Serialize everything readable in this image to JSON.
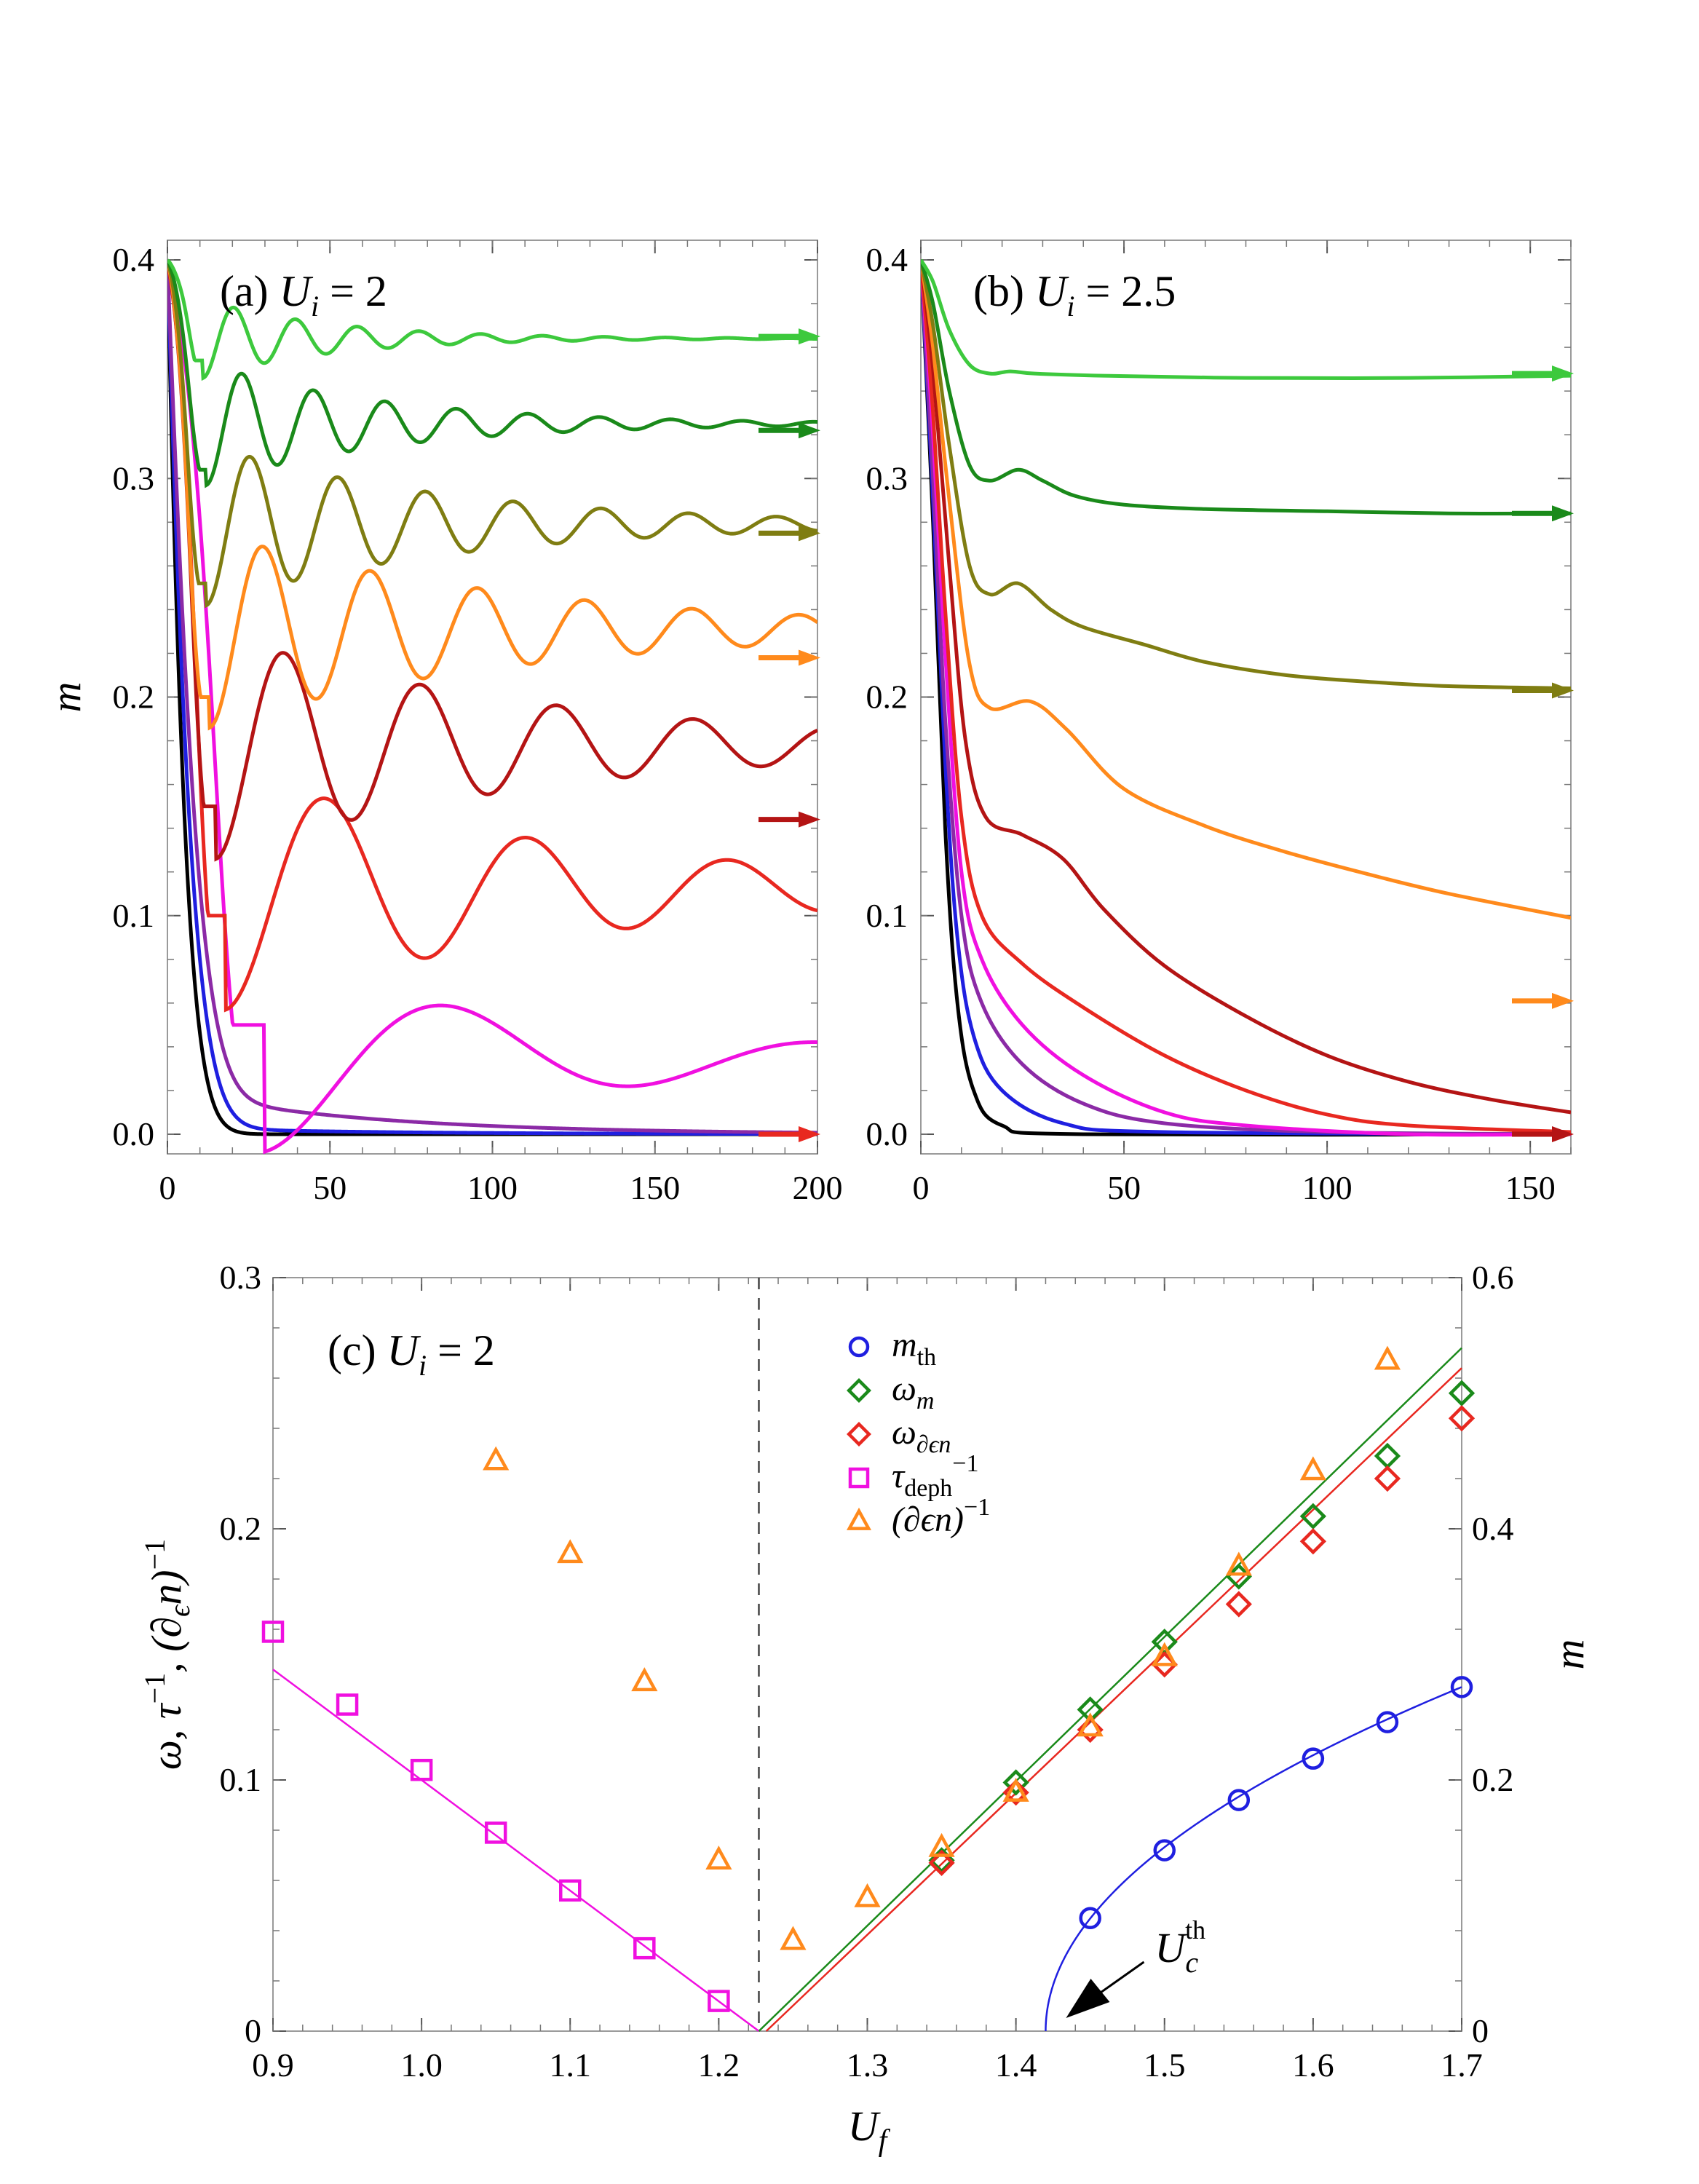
{
  "chart_data": [
    {
      "id": "a",
      "type": "line",
      "title": "(a) U_i = 2",
      "title_parts": {
        "label": "(a)",
        "var": "U",
        "sub": "i",
        "eq": "= 2"
      },
      "xlabel": "",
      "ylabel": "m",
      "xlim": [
        0,
        200
      ],
      "ylim": [
        0,
        0.4
      ],
      "xticks": [
        "0",
        "50",
        "100",
        "150",
        "200"
      ],
      "yticks": [
        "0.0",
        "0.1",
        "0.2",
        "0.3",
        "0.4"
      ],
      "series": [
        {
          "color": "#000000",
          "tail": 0.0,
          "dip_t": 0,
          "dip": 0,
          "A": 0,
          "period": 1,
          "decay": 1,
          "arrow": null
        },
        {
          "color": "#1f1fe0",
          "tail": 0.0,
          "dip_t": 0,
          "dip": 0,
          "A": 0,
          "period": 1,
          "decay": 1,
          "arrow": null,
          "slow": 0.003
        },
        {
          "color": "#8b2aa6",
          "tail": 0.0,
          "dip_t": 0,
          "dip": 0,
          "A": 0,
          "period": 1,
          "decay": 1,
          "arrow": null,
          "slow": 0.02
        },
        {
          "color": "#f010e0",
          "tail": 0.035,
          "dip_t": 30,
          "dip": 0.05,
          "A": 0.043,
          "period": 115,
          "decay": 95,
          "arrow": null
        },
        {
          "color": "#e82820",
          "tail": 0.112,
          "dip_t": 18,
          "dip": 0.1,
          "A": 0.055,
          "period": 62,
          "decay": 110,
          "arrow": 0.0
        },
        {
          "color": "#b41414",
          "tail": 0.178,
          "dip_t": 15,
          "dip": 0.15,
          "A": 0.052,
          "period": 42,
          "decay": 100,
          "arrow": 0.144
        },
        {
          "color": "#ff8a1c",
          "tail": 0.231,
          "dip_t": 13,
          "dip": 0.2,
          "A": 0.045,
          "period": 33,
          "decay": 95,
          "arrow": 0.218
        },
        {
          "color": "#7f7d12",
          "tail": 0.279,
          "dip_t": 12,
          "dip": 0.252,
          "A": 0.037,
          "period": 27,
          "decay": 75,
          "arrow": 0.275
        },
        {
          "color": "#1a8a1a",
          "tail": 0.325,
          "dip_t": 12,
          "dip": 0.304,
          "A": 0.028,
          "period": 22,
          "decay": 55,
          "arrow": 0.322
        },
        {
          "color": "#3dc93d",
          "tail": 0.364,
          "dip_t": 11,
          "dip": 0.354,
          "A": 0.018,
          "period": 19,
          "decay": 40,
          "arrow": 0.365
        }
      ]
    },
    {
      "id": "b",
      "type": "line",
      "title": "(b) U_i = 2.5",
      "title_parts": {
        "label": "(b)",
        "var": "U",
        "sub": "i",
        "eq": "= 2.5"
      },
      "xlabel": "",
      "ylabel": "",
      "xlim": [
        0,
        160
      ],
      "ylim": [
        0,
        0.4
      ],
      "xticks": [
        "0",
        "50",
        "100",
        "150"
      ],
      "yticks": [
        "0.0",
        "0.1",
        "0.2",
        "0.3",
        "0.4"
      ],
      "series": [
        {
          "color": "#000000",
          "pts": [
            [
              0,
              0.4
            ],
            [
              3,
              0.28
            ],
            [
              6,
              0.14
            ],
            [
              9,
              0.06
            ],
            [
              13,
              0.02
            ],
            [
              20,
              0.004
            ],
            [
              40,
              0.0
            ],
            [
              160,
              0.0
            ]
          ],
          "arrow": null
        },
        {
          "color": "#1f1fe0",
          "pts": [
            [
              0,
              0.4
            ],
            [
              3,
              0.29
            ],
            [
              6,
              0.17
            ],
            [
              9,
              0.09
            ],
            [
              13,
              0.045
            ],
            [
              20,
              0.02
            ],
            [
              35,
              0.005
            ],
            [
              60,
              0.001
            ],
            [
              160,
              0.0
            ]
          ],
          "arrow": null
        },
        {
          "color": "#8b2aa6",
          "pts": [
            [
              0,
              0.4
            ],
            [
              3,
              0.3
            ],
            [
              6,
              0.19
            ],
            [
              10,
              0.1
            ],
            [
              15,
              0.06
            ],
            [
              25,
              0.032
            ],
            [
              40,
              0.014
            ],
            [
              60,
              0.005
            ],
            [
              100,
              0.001
            ],
            [
              160,
              0.0
            ]
          ],
          "arrow": null
        },
        {
          "color": "#f010e0",
          "pts": [
            [
              0,
              0.4
            ],
            [
              3,
              0.32
            ],
            [
              6,
              0.22
            ],
            [
              10,
              0.12
            ],
            [
              15,
              0.08
            ],
            [
              25,
              0.05
            ],
            [
              40,
              0.027
            ],
            [
              60,
              0.01
            ],
            [
              80,
              0.004
            ],
            [
              120,
              0.0
            ],
            [
              160,
              0.0
            ]
          ],
          "arrow": null
        },
        {
          "color": "#e82820",
          "pts": [
            [
              0,
              0.4
            ],
            [
              3,
              0.33
            ],
            [
              6,
              0.24
            ],
            [
              10,
              0.145
            ],
            [
              15,
              0.1
            ],
            [
              25,
              0.078
            ],
            [
              40,
              0.058
            ],
            [
              60,
              0.036
            ],
            [
              80,
              0.02
            ],
            [
              100,
              0.009
            ],
            [
              120,
              0.004
            ],
            [
              160,
              0.001
            ]
          ],
          "arrow": null
        },
        {
          "color": "#b41414",
          "pts": [
            [
              0,
              0.4
            ],
            [
              3,
              0.35
            ],
            [
              7,
              0.26
            ],
            [
              11,
              0.18
            ],
            [
              16,
              0.145
            ],
            [
              25,
              0.137
            ],
            [
              35,
              0.126
            ],
            [
              45,
              0.103
            ],
            [
              60,
              0.077
            ],
            [
              80,
              0.054
            ],
            [
              100,
              0.036
            ],
            [
              120,
              0.024
            ],
            [
              140,
              0.016
            ],
            [
              160,
              0.01
            ]
          ],
          "arrow": 0.0
        },
        {
          "color": "#ff8a1c",
          "pts": [
            [
              0,
              0.4
            ],
            [
              3,
              0.36
            ],
            [
              7,
              0.29
            ],
            [
              12,
              0.215
            ],
            [
              17,
              0.195
            ],
            [
              27,
              0.198
            ],
            [
              36,
              0.185
            ],
            [
              50,
              0.158
            ],
            [
              70,
              0.141
            ],
            [
              90,
              0.129
            ],
            [
              110,
              0.119
            ],
            [
              130,
              0.11
            ],
            [
              160,
              0.099
            ]
          ],
          "arrow": 0.061
        },
        {
          "color": "#7f7d12",
          "pts": [
            [
              0,
              0.4
            ],
            [
              3,
              0.37
            ],
            [
              7,
              0.315
            ],
            [
              12,
              0.26
            ],
            [
              17,
              0.247
            ],
            [
              24,
              0.252
            ],
            [
              32,
              0.24
            ],
            [
              40,
              0.232
            ],
            [
              55,
              0.224
            ],
            [
              70,
              0.216
            ],
            [
              90,
              0.21
            ],
            [
              110,
              0.207
            ],
            [
              130,
              0.205
            ],
            [
              160,
              0.204
            ]
          ],
          "arrow": 0.203
        },
        {
          "color": "#1a8a1a",
          "pts": [
            [
              0,
              0.4
            ],
            [
              3,
              0.38
            ],
            [
              7,
              0.34
            ],
            [
              12,
              0.306
            ],
            [
              17,
              0.299
            ],
            [
              24,
              0.304
            ],
            [
              30,
              0.299
            ],
            [
              38,
              0.292
            ],
            [
              50,
              0.288
            ],
            [
              70,
              0.286
            ],
            [
              100,
              0.285
            ],
            [
              130,
              0.284
            ],
            [
              160,
              0.284
            ]
          ],
          "arrow": 0.284
        },
        {
          "color": "#3dc93d",
          "pts": [
            [
              0,
              0.4
            ],
            [
              3,
              0.39
            ],
            [
              7,
              0.368
            ],
            [
              12,
              0.352
            ],
            [
              17,
              0.348
            ],
            [
              22,
              0.349
            ],
            [
              28,
              0.348
            ],
            [
              45,
              0.347
            ],
            [
              80,
              0.346
            ],
            [
              120,
              0.346
            ],
            [
              160,
              0.347
            ]
          ],
          "arrow": 0.348
        }
      ]
    },
    {
      "id": "c",
      "type": "scatter",
      "title": "(c) U_i = 2",
      "title_parts": {
        "label": "(c)",
        "var": "U",
        "sub": "i",
        "eq": "= 2"
      },
      "xlabel": "U_f",
      "ylabel_left": "ω, τ^-1, (∂_ϵ n)^-1",
      "ylabel_right": "m",
      "xlim": [
        0.9,
        1.7
      ],
      "ylim_left": [
        0,
        0.3
      ],
      "ylim_right": [
        0,
        0.6
      ],
      "xticks": [
        "0.9",
        "1.0",
        "1.1",
        "1.2",
        "1.3",
        "1.4",
        "1.5",
        "1.6",
        "1.7"
      ],
      "yticks_left": [
        "0",
        "0.1",
        "0.2",
        "0.3"
      ],
      "yticks_right": [
        "0",
        "0.2",
        "0.4",
        "0.6"
      ],
      "dashed_line_x": 1.227,
      "annotation": {
        "text": "U_c^th",
        "x": 1.42,
        "y": 0
      },
      "legend": [
        {
          "marker": "circle",
          "color": "#1f1fe0",
          "label": "m",
          "sub": "th",
          "sup": ""
        },
        {
          "marker": "diamond",
          "color": "#1a8a1a",
          "label": "ω",
          "sub": "m",
          "sup": ""
        },
        {
          "marker": "diamond",
          "color": "#e82820",
          "label": "ω",
          "sub": "∂ϵn",
          "sup": ""
        },
        {
          "marker": "square",
          "color": "#f010e0",
          "label": "τ",
          "sub": "deph",
          "sup": "−1"
        },
        {
          "marker": "triangle",
          "color": "#ff8a1c",
          "label": "(∂ϵn)",
          "sub": "",
          "sup": "−1"
        }
      ],
      "series": [
        {
          "name": "m_th",
          "axis": "right",
          "marker": "circle",
          "color": "#1f1fe0",
          "x": [
            1.45,
            1.5,
            1.55,
            1.6,
            1.65,
            1.7
          ],
          "y": [
            0.09,
            0.144,
            0.184,
            0.217,
            0.246,
            0.274
          ]
        },
        {
          "name": "ω_m",
          "axis": "left",
          "marker": "diamond",
          "color": "#1a8a1a",
          "x": [
            1.35,
            1.4,
            1.45,
            1.5,
            1.55,
            1.6,
            1.65,
            1.7
          ],
          "y": [
            0.068,
            0.099,
            0.128,
            0.155,
            0.181,
            0.205,
            0.229,
            0.254
          ]
        },
        {
          "name": "ω_∂ϵn",
          "axis": "left",
          "marker": "diamond",
          "color": "#e82820",
          "x": [
            1.35,
            1.4,
            1.45,
            1.5,
            1.55,
            1.6,
            1.65,
            1.7
          ],
          "y": [
            0.067,
            0.095,
            0.12,
            0.146,
            0.17,
            0.195,
            0.22,
            0.244
          ]
        },
        {
          "name": "τ_deph^-1",
          "axis": "left",
          "marker": "square",
          "color": "#f010e0",
          "x": [
            0.9,
            0.95,
            1.0,
            1.05,
            1.1,
            1.15,
            1.2
          ],
          "y": [
            0.159,
            0.13,
            0.104,
            0.079,
            0.056,
            0.033,
            0.012
          ]
        },
        {
          "name": "(∂ϵn)^-1",
          "axis": "left",
          "marker": "triangle",
          "color": "#ff8a1c",
          "x": [
            1.05,
            1.1,
            1.15,
            1.2,
            1.25,
            1.3,
            1.35,
            1.4,
            1.45,
            1.5,
            1.55,
            1.6,
            1.65
          ],
          "y": [
            0.227,
            0.19,
            0.139,
            0.068,
            0.036,
            0.053,
            0.073,
            0.095,
            0.121,
            0.149,
            0.185,
            0.223,
            0.267
          ]
        }
      ],
      "fit_lines": [
        {
          "color": "#f010e0",
          "axis": "left",
          "x": [
            0.9,
            1.227
          ],
          "y": [
            0.144,
            0.0
          ]
        },
        {
          "color": "#1a8a1a",
          "axis": "left",
          "x": [
            1.227,
            1.7
          ],
          "y": [
            0.0,
            0.272
          ]
        },
        {
          "color": "#e82820",
          "axis": "left",
          "x": [
            1.232,
            1.7
          ],
          "y": [
            0.0,
            0.264
          ]
        }
      ],
      "fit_curve": {
        "color": "#1f1fe0",
        "axis": "right",
        "x0": 1.42,
        "x1": 1.7,
        "y1": 0.274
      }
    }
  ]
}
